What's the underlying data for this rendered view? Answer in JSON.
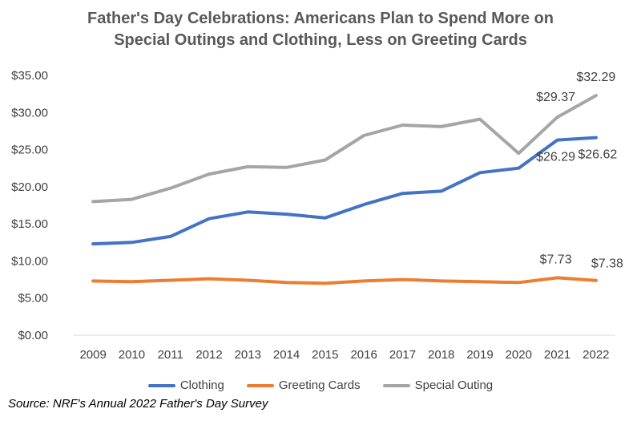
{
  "chart_data": {
    "type": "line",
    "title_lines": [
      "Father's Day Celebrations: Americans Plan to Spend More on",
      "Special Outings and Clothing, Less on Greeting Cards"
    ],
    "x": [
      "2009",
      "2010",
      "2011",
      "2012",
      "2013",
      "2014",
      "2015",
      "2016",
      "2017",
      "2018",
      "2019",
      "2020",
      "2021",
      "2022"
    ],
    "ylim": [
      0,
      35
    ],
    "y_ticks": [
      "$0.00",
      "$5.00",
      "$10.00",
      "$15.00",
      "$20.00",
      "$25.00",
      "$30.00",
      "$35.00"
    ],
    "grid": false,
    "legend_position": "bottom",
    "series": [
      {
        "name": "Clothing",
        "color": "#4472C4",
        "values": [
          12.3,
          12.5,
          13.3,
          15.7,
          16.6,
          16.3,
          15.8,
          17.6,
          19.1,
          19.4,
          21.9,
          22.5,
          26.29,
          26.62
        ],
        "labels": [
          {
            "index": 12,
            "text": "$26.29"
          },
          {
            "index": 13,
            "text": "$26.62"
          }
        ]
      },
      {
        "name": "Greeting Cards",
        "color": "#ED7D31",
        "values": [
          7.3,
          7.2,
          7.4,
          7.6,
          7.4,
          7.1,
          7.0,
          7.3,
          7.5,
          7.3,
          7.2,
          7.1,
          7.73,
          7.38
        ],
        "labels": [
          {
            "index": 12,
            "text": "$7.73"
          },
          {
            "index": 13,
            "text": "$7.38"
          }
        ]
      },
      {
        "name": "Special Outing",
        "color": "#A5A5A5",
        "values": [
          18.0,
          18.3,
          19.8,
          21.7,
          22.7,
          22.6,
          23.6,
          26.9,
          28.3,
          28.1,
          29.1,
          24.5,
          29.37,
          32.29
        ],
        "labels": [
          {
            "index": 12,
            "text": "$29.37"
          },
          {
            "index": 13,
            "text": "$32.29"
          }
        ]
      }
    ]
  },
  "source": "Source: NRF's Annual 2022 Father's Day Survey"
}
